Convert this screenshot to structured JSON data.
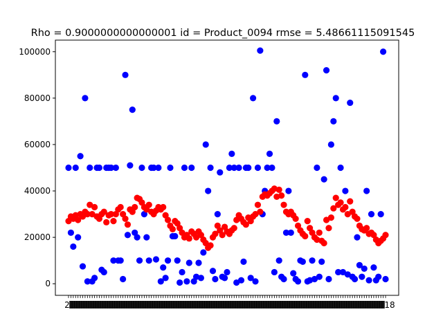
{
  "chart_data": {
    "type": "scatter",
    "title": "Rho = 0.9000000000000001 id = Product_0094 rmse = 5.48661115091545",
    "xlabel": "",
    "ylabel": "",
    "ylim": [
      -5000,
      105000
    ],
    "yticks": [
      0,
      20000,
      40000,
      60000,
      80000,
      100000
    ],
    "ytick_labels": [
      "0",
      "20000",
      "40000",
      "60000",
      "80000",
      "100000"
    ],
    "x_count": 135,
    "first_x_label": "2",
    "last_x_label": "18",
    "series": [
      {
        "color": "#0000ff",
        "values": [
          50000,
          22000,
          16000,
          50000,
          20000,
          55000,
          7500,
          80000,
          1000,
          50000,
          1000,
          2500,
          50000,
          50000,
          6000,
          5000,
          50000,
          50000,
          50000,
          10000,
          50000,
          10000,
          10000,
          2000,
          90000,
          21000,
          51000,
          75000,
          22000,
          20000,
          10000,
          50000,
          30000,
          20000,
          10000,
          50000,
          50000,
          10500,
          50000,
          1000,
          7000,
          2500,
          10000,
          50000,
          20500,
          20500,
          10000,
          500,
          5000,
          50000,
          1000,
          9000,
          50000,
          1000,
          3000,
          9000,
          2500,
          13500,
          60000,
          40000,
          50000,
          5500,
          2000,
          30000,
          48000,
          3000,
          2500,
          5000,
          50000,
          56000,
          50000,
          500,
          50000,
          1500,
          9500,
          50000,
          50000,
          2500,
          80000,
          1000,
          50000,
          100500,
          30000,
          40000,
          50000,
          56000,
          50000,
          5000,
          70000,
          10000,
          3000,
          2000,
          22000,
          40000,
          22000,
          4500,
          2000,
          1000,
          10000,
          9500,
          90000,
          1000,
          1500,
          10000,
          2000,
          50000,
          3000,
          9500,
          45000,
          92000,
          2000,
          60000,
          70000,
          80000,
          5000,
          50000,
          5000,
          40000,
          4000,
          78000,
          3000,
          2000,
          20000,
          8000,
          3000,
          6500,
          40000,
          1500,
          30000,
          7000,
          1500,
          3000,
          30000,
          100000,
          2000
        ]
      },
      {
        "color": "#ff0000",
        "values": [
          27000,
          29000,
          28000,
          29500,
          27500,
          30000,
          29000,
          31000,
          30000,
          34000,
          30000,
          33000,
          29000,
          28000,
          30000,
          31000,
          26500,
          29500,
          30000,
          27000,
          30000,
          32000,
          33000,
          30000,
          28000,
          25500,
          32000,
          31000,
          33000,
          37000,
          36500,
          35000,
          33000,
          32000,
          34000,
          31000,
          30000,
          31500,
          33000,
          32000,
          33000,
          29500,
          27500,
          25000,
          23500,
          27000,
          26000,
          24000,
          22000,
          20000,
          21000,
          19500,
          22500,
          21500,
          20000,
          22500,
          21000,
          19000,
          17500,
          15500,
          16500,
          20000,
          21500,
          25000,
          23000,
          21000,
          24500,
          22500,
          21500,
          23000,
          24000,
          27500,
          29500,
          28000,
          26500,
          25500,
          28500,
          27000,
          29000,
          30000,
          34000,
          31000,
          37500,
          38500,
          38000,
          39000,
          40000,
          41000,
          37500,
          40500,
          38000,
          34000,
          31000,
          30000,
          31000,
          29500,
          28000,
          25000,
          23000,
          21500,
          20500,
          27000,
          24000,
          22000,
          20000,
          19000,
          22000,
          18500,
          17500,
          27500,
          24000,
          28500,
          32500,
          37000,
          34000,
          35000,
          32000,
          33000,
          30000,
          35500,
          31000,
          29000,
          28000,
          25000,
          23500,
          23000,
          24000,
          21500,
          22000,
          21000,
          19000,
          17500,
          18500,
          19500,
          21000
        ]
      }
    ]
  }
}
